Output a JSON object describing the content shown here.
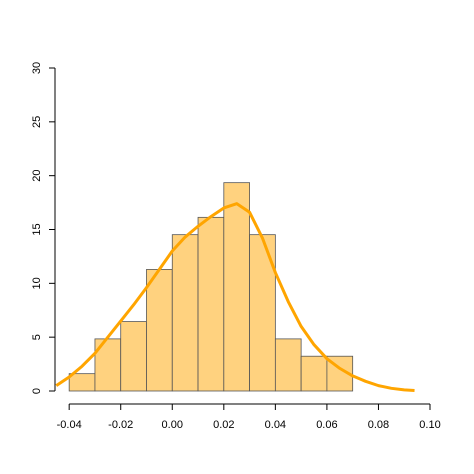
{
  "chart_data": {
    "type": "histogram",
    "bins": [
      -0.04,
      -0.03,
      -0.02,
      -0.01,
      0.0,
      0.01,
      0.02,
      0.03,
      0.04,
      0.05,
      0.06,
      0.07
    ],
    "values": [
      1.61,
      4.84,
      6.45,
      11.29,
      14.52,
      16.13,
      19.35,
      14.52,
      4.84,
      3.23,
      3.23
    ],
    "color": "#ffd27f",
    "edge_color": "#555555",
    "density": {
      "x": [
        -0.045,
        -0.04,
        -0.035,
        -0.03,
        -0.025,
        -0.02,
        -0.015,
        -0.01,
        -0.005,
        0.0,
        0.005,
        0.01,
        0.015,
        0.02,
        0.025,
        0.03,
        0.035,
        0.04,
        0.045,
        0.05,
        0.055,
        0.06,
        0.065,
        0.07,
        0.075,
        0.08,
        0.085,
        0.09,
        0.094
      ],
      "y": [
        0.5,
        1.3,
        2.3,
        3.5,
        5.0,
        6.5,
        8.0,
        9.6,
        11.3,
        13.0,
        14.3,
        15.3,
        16.2,
        17.0,
        17.4,
        16.6,
        14.2,
        11.0,
        8.3,
        6.0,
        4.3,
        3.0,
        2.1,
        1.4,
        0.9,
        0.5,
        0.25,
        0.1,
        0.05
      ],
      "color": "#ffa500"
    },
    "xlim": [
      -0.0455,
      0.1
    ],
    "ylim": [
      0,
      30
    ],
    "xticks": [
      -0.04,
      -0.02,
      {
        "value": 0.0,
        "label": "0.00"
      },
      0.02,
      0.04,
      0.06,
      0.08,
      {
        "value": 0.1,
        "label": "0.10"
      }
    ],
    "yticks": [
      0,
      5,
      10,
      15,
      20,
      25,
      30
    ]
  }
}
